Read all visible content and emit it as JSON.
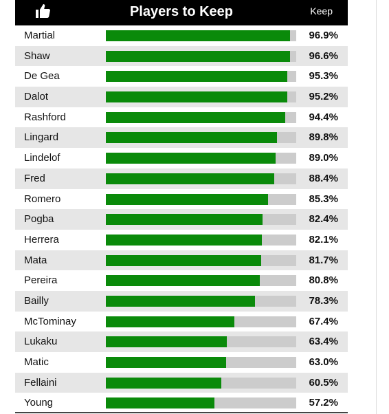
{
  "header": {
    "title": "Players to Keep",
    "column_label": "Keep",
    "icon": "thumbs-up-icon"
  },
  "colors": {
    "header_bg": "#000000",
    "bar_fill": "#0a8a0a",
    "bar_track": "#cccccc",
    "row_alt": "#e6e6e6"
  },
  "chart_data": {
    "type": "bar",
    "orientation": "horizontal",
    "title": "Players to Keep",
    "value_label": "Keep",
    "xlim": [
      0,
      100
    ],
    "categories": [
      "Martial",
      "Shaw",
      "De Gea",
      "Dalot",
      "Rashford",
      "Lingard",
      "Lindelof",
      "Fred",
      "Romero",
      "Pogba",
      "Herrera",
      "Mata",
      "Pereira",
      "Bailly",
      "McTominay",
      "Lukaku",
      "Matic",
      "Fellaini",
      "Young"
    ],
    "values": [
      96.9,
      96.6,
      95.3,
      95.2,
      94.4,
      89.8,
      89.0,
      88.4,
      85.3,
      82.4,
      82.1,
      81.7,
      80.8,
      78.3,
      67.4,
      63.4,
      63.0,
      60.5,
      57.2
    ],
    "labels": [
      "96.9%",
      "96.6%",
      "95.3%",
      "95.2%",
      "94.4%",
      "89.8%",
      "89.0%",
      "88.4%",
      "85.3%",
      "82.4%",
      "82.1%",
      "81.7%",
      "80.8%",
      "78.3%",
      "67.4%",
      "63.4%",
      "63.0%",
      "60.5%",
      "57.2%"
    ]
  }
}
